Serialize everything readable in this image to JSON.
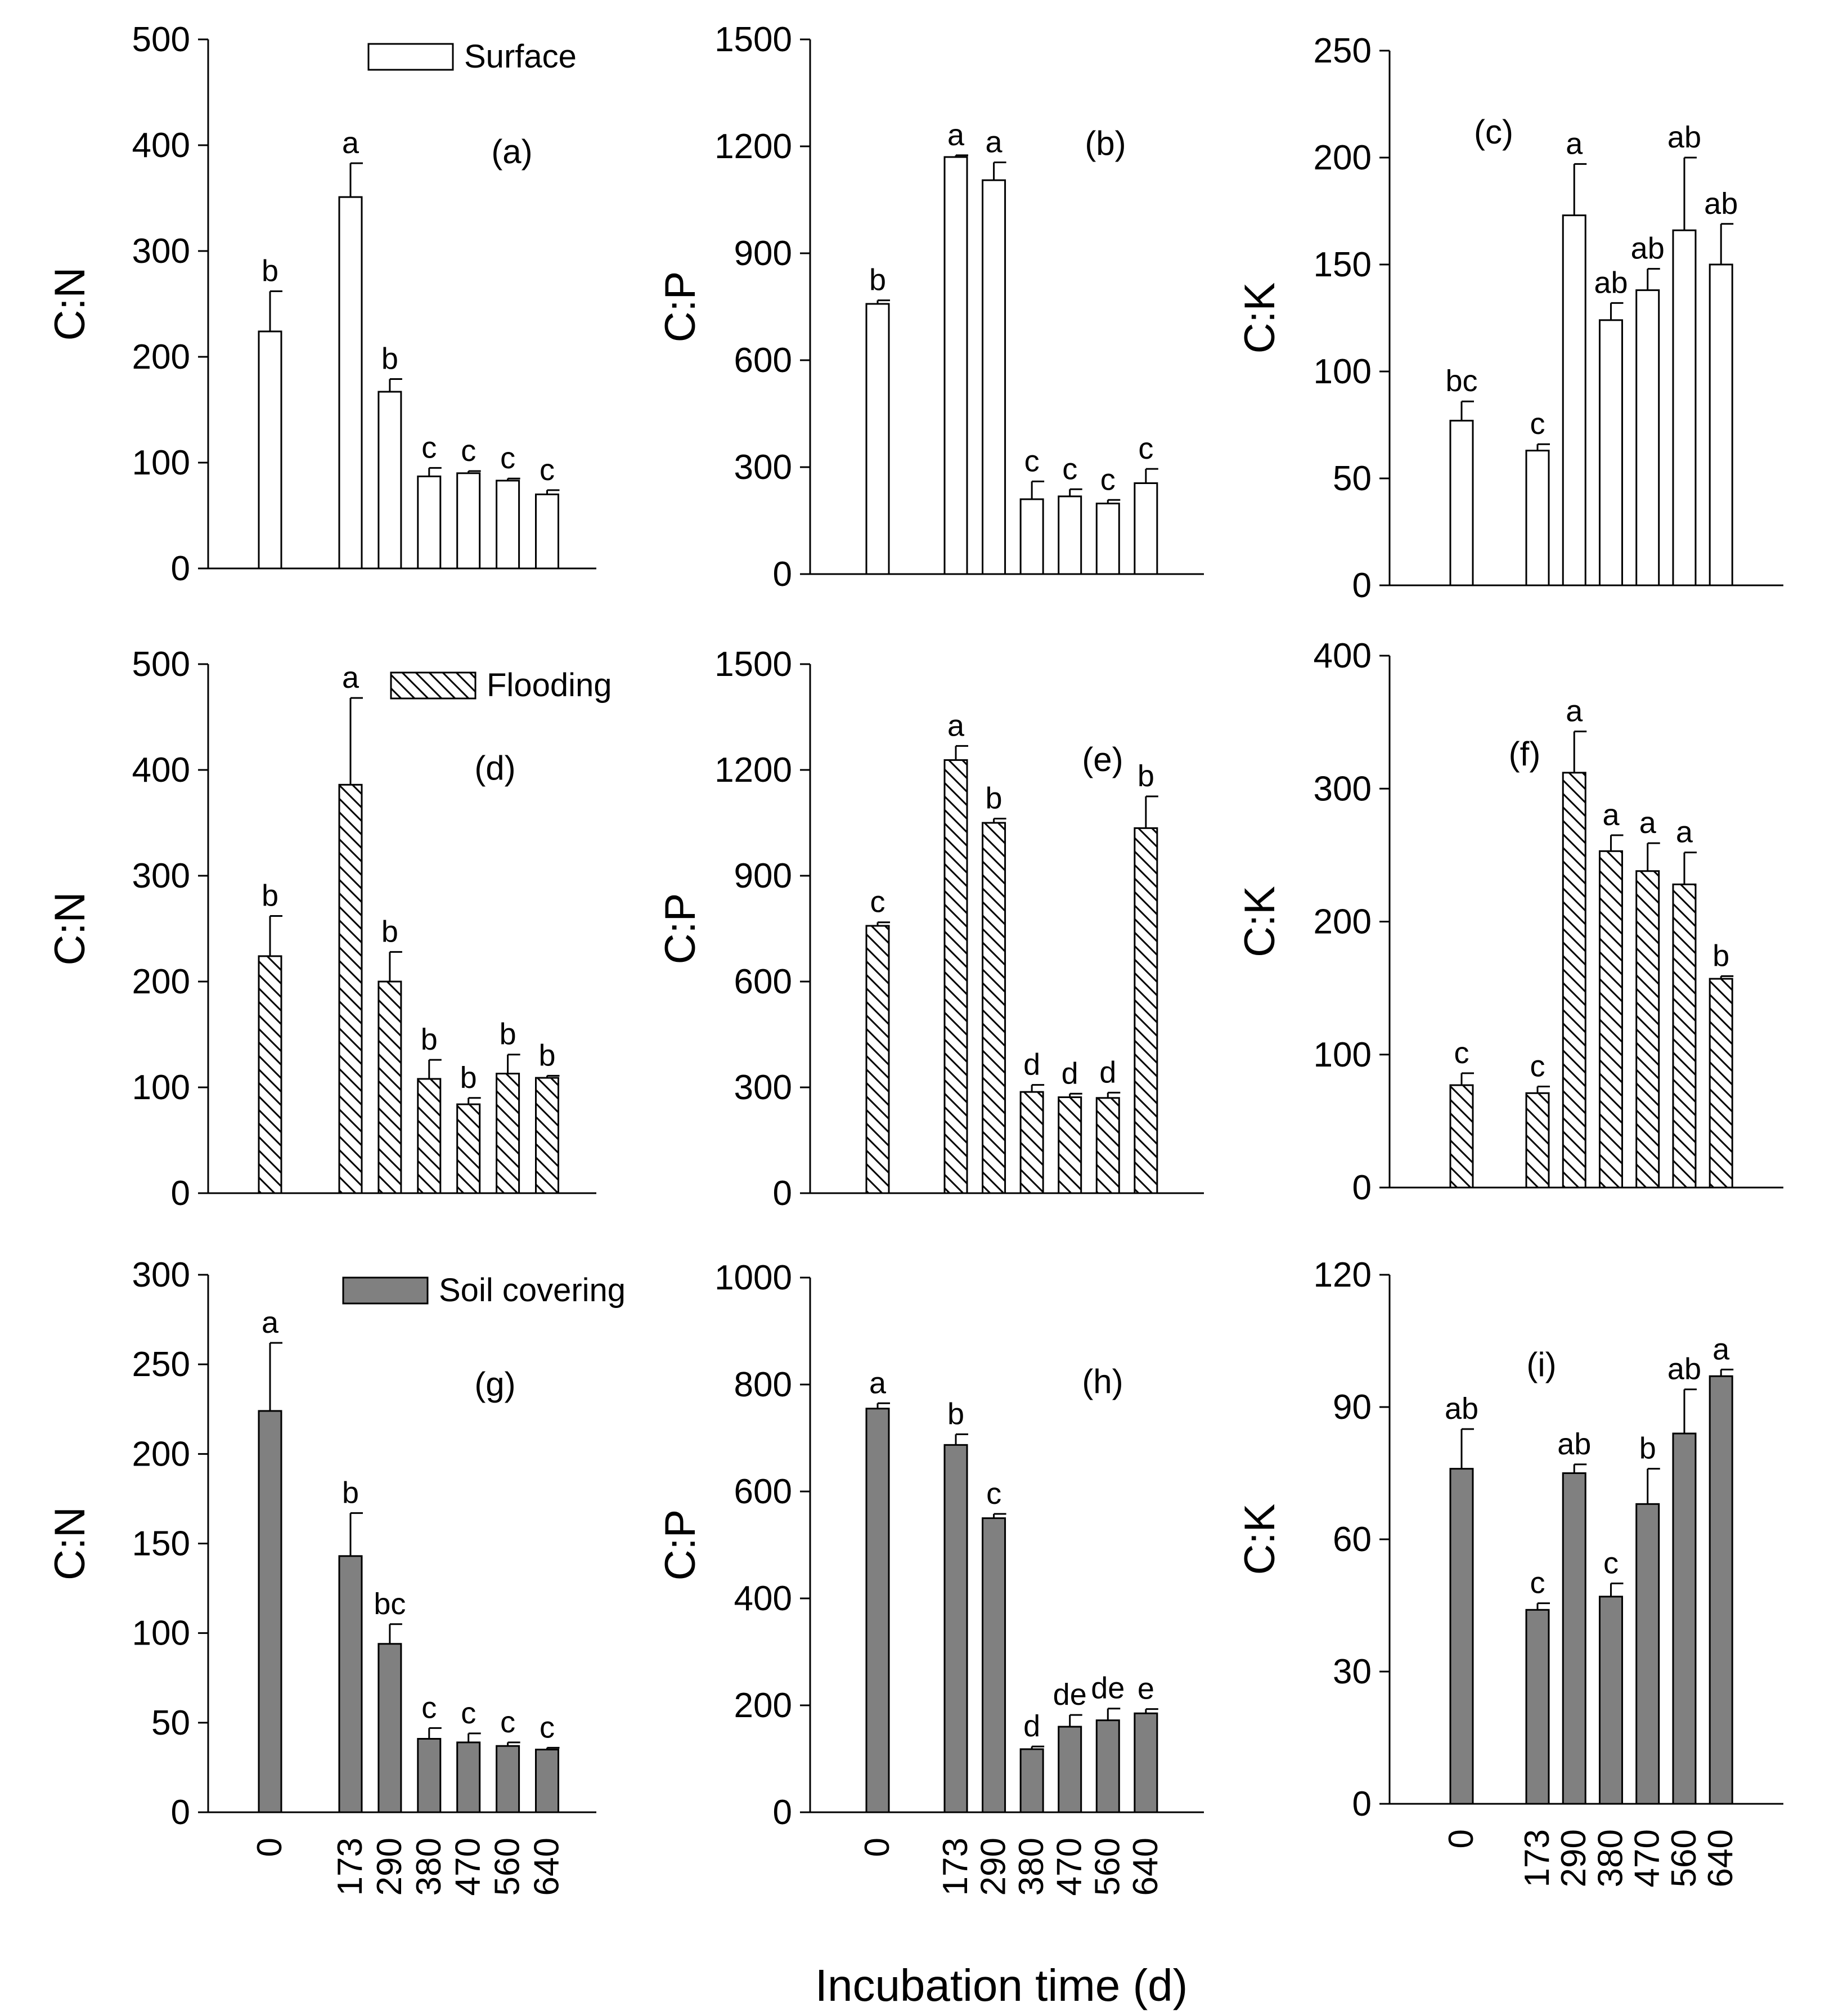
{
  "chart_data": {
    "type": "bar",
    "x_title": "Incubation time (d)",
    "categories": [
      "0",
      "173",
      "290",
      "380",
      "470",
      "560",
      "640"
    ],
    "panels": [
      {
        "id": "a",
        "tag": "(a)",
        "treatment": "Surface",
        "legend": "Surface",
        "pattern": "open",
        "ylabel": "C:N",
        "ylim": [
          0,
          500
        ],
        "yticks": [
          0,
          100,
          200,
          300,
          400,
          500
        ],
        "values": [
          224,
          351,
          167,
          87,
          90,
          83,
          70
        ],
        "errors": [
          38,
          32,
          12,
          8,
          2,
          2,
          4
        ],
        "letters": [
          "b",
          "a",
          "b",
          "c",
          "c",
          "c",
          "c"
        ]
      },
      {
        "id": "b",
        "tag": "(b)",
        "treatment": "Surface",
        "pattern": "open",
        "ylabel": "C:P",
        "ylim": [
          0,
          1500
        ],
        "yticks": [
          0,
          300,
          600,
          900,
          1200,
          1500
        ],
        "values": [
          758,
          1170,
          1105,
          210,
          218,
          198,
          255
        ],
        "errors": [
          10,
          5,
          50,
          50,
          20,
          10,
          40
        ],
        "letters": [
          "b",
          "a",
          "a",
          "c",
          "c",
          "c",
          "c"
        ]
      },
      {
        "id": "c",
        "tag": "(c)",
        "treatment": "Surface",
        "pattern": "open",
        "ylabel": "C:K",
        "ylim": [
          0,
          250
        ],
        "yticks": [
          0,
          50,
          100,
          150,
          200,
          250
        ],
        "values": [
          77,
          63,
          173,
          124,
          138,
          166,
          150
        ],
        "errors": [
          9,
          3,
          24,
          8,
          10,
          34,
          19
        ],
        "letters": [
          "bc",
          "c",
          "a",
          "ab",
          "ab",
          "ab",
          "ab"
        ]
      },
      {
        "id": "d",
        "tag": "(d)",
        "treatment": "Flooding",
        "legend": "Flooding",
        "pattern": "hatch",
        "ylabel": "C:N",
        "ylim": [
          0,
          500
        ],
        "yticks": [
          0,
          100,
          200,
          300,
          400,
          500
        ],
        "values": [
          224,
          386,
          200,
          108,
          84,
          113,
          109
        ],
        "errors": [
          38,
          82,
          28,
          18,
          6,
          18,
          2
        ],
        "letters": [
          "b",
          "a",
          "b",
          "b",
          "b",
          "b",
          "b"
        ]
      },
      {
        "id": "e",
        "tag": "(e)",
        "treatment": "Flooding",
        "pattern": "hatch",
        "ylabel": "C:P",
        "ylim": [
          0,
          1500
        ],
        "yticks": [
          0,
          300,
          600,
          900,
          1200,
          1500
        ],
        "values": [
          758,
          1228,
          1050,
          287,
          272,
          270,
          1035
        ],
        "errors": [
          10,
          40,
          12,
          20,
          10,
          15,
          90
        ],
        "letters": [
          "c",
          "a",
          "b",
          "d",
          "d",
          "d",
          "b"
        ]
      },
      {
        "id": "f",
        "tag": "(f)",
        "treatment": "Flooding",
        "pattern": "hatch",
        "ylabel": "C:K",
        "ylim": [
          0,
          400
        ],
        "yticks": [
          0,
          100,
          200,
          300,
          400
        ],
        "values": [
          77,
          71,
          312,
          253,
          238,
          228,
          157
        ],
        "errors": [
          9,
          5,
          31,
          12,
          21,
          24,
          2
        ],
        "letters": [
          "c",
          "c",
          "a",
          "a",
          "a",
          "a",
          "b"
        ]
      },
      {
        "id": "g",
        "tag": "(g)",
        "treatment": "Soil covering",
        "legend": "Soil covering",
        "pattern": "filled",
        "ylabel": "C:N",
        "ylim": [
          0,
          300
        ],
        "yticks": [
          0,
          50,
          100,
          150,
          200,
          250,
          300
        ],
        "values": [
          224,
          143,
          94,
          41,
          39,
          37,
          35
        ],
        "errors": [
          38,
          24,
          11,
          6,
          5,
          2,
          1
        ],
        "letters": [
          "a",
          "b",
          "bc",
          "c",
          "c",
          "c",
          "c"
        ]
      },
      {
        "id": "h",
        "tag": "(h)",
        "treatment": "Soil covering",
        "pattern": "filled",
        "ylabel": "C:P",
        "ylim": [
          0,
          1000
        ],
        "yticks": [
          0,
          200,
          400,
          600,
          800,
          1000
        ],
        "values": [
          755,
          687,
          550,
          118,
          160,
          172,
          185
        ],
        "errors": [
          10,
          20,
          8,
          5,
          22,
          22,
          8
        ],
        "letters": [
          "a",
          "b",
          "c",
          "d",
          "de",
          "de",
          "e"
        ]
      },
      {
        "id": "i",
        "tag": "(i)",
        "treatment": "Soil covering",
        "pattern": "filled",
        "ylabel": "C:K",
        "ylim": [
          0,
          120
        ],
        "yticks": [
          0,
          30,
          60,
          90,
          120
        ],
        "values": [
          76,
          44,
          75,
          47,
          68,
          84,
          97
        ],
        "errors": [
          9,
          1.5,
          2,
          3,
          8,
          10,
          1.5
        ],
        "letters": [
          "ab",
          "c",
          "ab",
          "c",
          "b",
          "ab",
          "a"
        ]
      }
    ]
  }
}
